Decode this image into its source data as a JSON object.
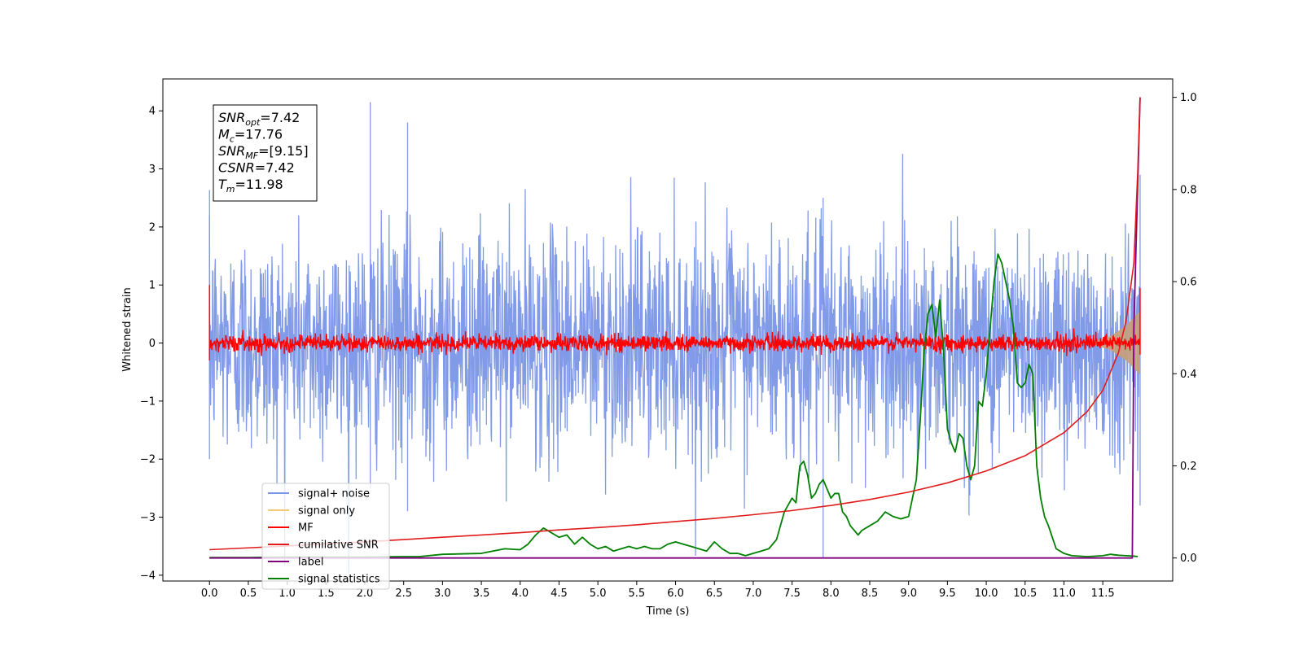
{
  "chart_data": {
    "type": "line",
    "xlabel": "Time (s)",
    "ylabel": "Whitened strain",
    "xlim": [
      -0.6,
      12.4
    ],
    "ylim": [
      -4.1,
      4.55
    ],
    "y2lim": [
      -0.05,
      1.04
    ],
    "x_ticks": [
      "0.0",
      "0.5",
      "1.0",
      "1.5",
      "2.0",
      "2.5",
      "3.0",
      "3.5",
      "4.0",
      "4.5",
      "5.0",
      "5.5",
      "6.0",
      "6.5",
      "7.0",
      "7.5",
      "8.0",
      "8.5",
      "9.0",
      "9.5",
      "10.0",
      "10.5",
      "11.0",
      "11.5"
    ],
    "y_ticks": [
      "4",
      "3",
      "2",
      "1",
      "0",
      "−1",
      "−2",
      "−3",
      "−4"
    ],
    "y2_ticks": [
      "1.0",
      "0.8",
      "0.6",
      "0.4",
      "0.2",
      "0.0"
    ],
    "info_box": [
      {
        "sym": "SNR",
        "sub": "opt",
        "value": "=7.42"
      },
      {
        "sym": "M",
        "sub": "c",
        "value": "=17.76"
      },
      {
        "sym": "SNR",
        "sub": "MF",
        "value": "=[9.15]"
      },
      {
        "sym": "CSNR",
        "sub": "",
        "value": "=7.42"
      },
      {
        "sym": "T",
        "sub": "m",
        "value": "=11.98"
      }
    ],
    "legend": {
      "position": "lower-left",
      "entries": [
        {
          "label": "signal+ noise",
          "color": "#7b96e8"
        },
        {
          "label": "signal only",
          "color": "#f5c878"
        },
        {
          "label": "MF",
          "color": "#ff0000"
        },
        {
          "label": "cumilative SNR",
          "color": "#e01b1b"
        },
        {
          "label": "label",
          "color": "#800080"
        },
        {
          "label": "signal statistics",
          "color": "#008000"
        }
      ]
    },
    "series": [
      {
        "name": "signal+ noise",
        "axis": "left",
        "kind": "noise",
        "x_range": [
          0.0,
          11.98
        ],
        "mean": 0.0,
        "std": 0.95,
        "envelope": [
          [
            0.0,
            2.2,
            -2.0
          ],
          [
            2.07,
            4.15,
            -2.5
          ],
          [
            2.55,
            3.8,
            -2.9
          ],
          [
            7.9,
            2.5,
            -3.7
          ],
          [
            11.98,
            2.9,
            -2.8
          ]
        ]
      },
      {
        "name": "signal only",
        "axis": "left",
        "kind": "chirp",
        "x_range": [
          11.3,
          11.98
        ],
        "amplitude": [
          [
            11.3,
            0.0
          ],
          [
            11.6,
            0.12
          ],
          [
            11.8,
            0.3
          ],
          [
            11.98,
            0.55
          ]
        ]
      },
      {
        "name": "MF",
        "axis": "left",
        "kind": "noise",
        "x_range": [
          0.0,
          11.98
        ],
        "mean": 0.0,
        "std": 0.07,
        "envelope": [
          [
            0.0,
            1.0,
            -0.3
          ],
          [
            11.98,
            0.95,
            -0.2
          ]
        ]
      },
      {
        "name": "cumilative SNR",
        "axis": "right",
        "x": [
          0.0,
          0.5,
          1.0,
          1.5,
          2.0,
          2.5,
          3.0,
          3.5,
          4.0,
          4.5,
          5.0,
          5.5,
          6.0,
          6.5,
          7.0,
          7.5,
          8.0,
          8.5,
          9.0,
          9.5,
          10.0,
          10.5,
          11.0,
          11.3,
          11.5,
          11.7,
          11.8,
          11.9,
          11.95,
          11.98
        ],
        "y": [
          0.018,
          0.022,
          0.026,
          0.031,
          0.035,
          0.04,
          0.045,
          0.05,
          0.055,
          0.061,
          0.066,
          0.072,
          0.079,
          0.086,
          0.094,
          0.103,
          0.114,
          0.127,
          0.143,
          0.163,
          0.189,
          0.222,
          0.272,
          0.318,
          0.364,
          0.445,
          0.515,
          0.64,
          0.84,
          1.0
        ]
      },
      {
        "name": "label",
        "axis": "right",
        "x": [
          0.0,
          11.88,
          11.9,
          11.98
        ],
        "y": [
          0.0,
          0.0,
          0.5,
          1.0
        ]
      },
      {
        "name": "signal statistics",
        "axis": "right",
        "x": [
          0.0,
          0.5,
          1.0,
          1.5,
          2.0,
          2.5,
          2.7,
          3.0,
          3.5,
          3.8,
          4.0,
          4.1,
          4.2,
          4.3,
          4.4,
          4.5,
          4.6,
          4.7,
          4.8,
          4.9,
          5.0,
          5.1,
          5.2,
          5.3,
          5.4,
          5.5,
          5.6,
          5.7,
          5.8,
          5.9,
          6.0,
          6.1,
          6.2,
          6.3,
          6.4,
          6.5,
          6.6,
          6.7,
          6.8,
          6.9,
          7.0,
          7.1,
          7.2,
          7.3,
          7.4,
          7.5,
          7.55,
          7.6,
          7.65,
          7.7,
          7.75,
          7.8,
          7.85,
          7.9,
          7.95,
          8.0,
          8.05,
          8.1,
          8.15,
          8.2,
          8.25,
          8.3,
          8.35,
          8.4,
          8.5,
          8.6,
          8.7,
          8.8,
          8.9,
          9.0,
          9.1,
          9.15,
          9.2,
          9.25,
          9.3,
          9.35,
          9.4,
          9.45,
          9.5,
          9.55,
          9.6,
          9.65,
          9.7,
          9.75,
          9.8,
          9.85,
          9.9,
          9.95,
          10.0,
          10.1,
          10.15,
          10.2,
          10.25,
          10.3,
          10.35,
          10.4,
          10.45,
          10.5,
          10.55,
          10.6,
          10.65,
          10.7,
          10.75,
          10.8,
          10.9,
          11.0,
          11.1,
          11.3,
          11.5,
          11.6,
          11.7,
          11.8,
          11.9,
          11.95
        ],
        "y": [
          0.001,
          0.001,
          0.002,
          0.002,
          0.002,
          0.003,
          0.003,
          0.008,
          0.01,
          0.02,
          0.018,
          0.03,
          0.05,
          0.065,
          0.055,
          0.045,
          0.05,
          0.03,
          0.045,
          0.03,
          0.02,
          0.025,
          0.015,
          0.02,
          0.025,
          0.02,
          0.025,
          0.02,
          0.02,
          0.03,
          0.035,
          0.03,
          0.025,
          0.02,
          0.015,
          0.035,
          0.02,
          0.01,
          0.01,
          0.005,
          0.01,
          0.015,
          0.02,
          0.04,
          0.1,
          0.13,
          0.12,
          0.2,
          0.21,
          0.18,
          0.13,
          0.14,
          0.16,
          0.17,
          0.15,
          0.13,
          0.14,
          0.14,
          0.1,
          0.09,
          0.07,
          0.06,
          0.05,
          0.06,
          0.07,
          0.08,
          0.1,
          0.09,
          0.085,
          0.09,
          0.17,
          0.3,
          0.45,
          0.53,
          0.55,
          0.48,
          0.56,
          0.45,
          0.28,
          0.25,
          0.23,
          0.27,
          0.26,
          0.2,
          0.17,
          0.2,
          0.34,
          0.33,
          0.4,
          0.6,
          0.66,
          0.64,
          0.6,
          0.56,
          0.5,
          0.38,
          0.37,
          0.38,
          0.42,
          0.4,
          0.2,
          0.13,
          0.09,
          0.07,
          0.02,
          0.01,
          0.005,
          0.003,
          0.005,
          0.008,
          0.006,
          0.005,
          0.004,
          0.003
        ]
      }
    ]
  }
}
